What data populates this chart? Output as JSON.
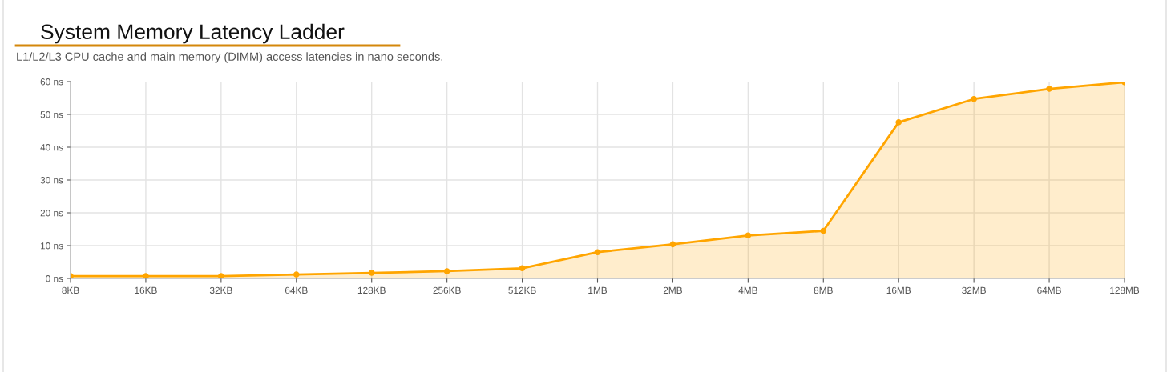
{
  "chart_data": {
    "type": "area",
    "title": "System Memory Latency Ladder",
    "subtitle": "L1/L2/L3 CPU cache and main memory (DIMM) access latencies in nano seconds.",
    "categories": [
      "8KB",
      "16KB",
      "32KB",
      "64KB",
      "128KB",
      "256KB",
      "512KB",
      "1MB",
      "2MB",
      "4MB",
      "8MB",
      "16MB",
      "32MB",
      "64MB",
      "128MB"
    ],
    "values": [
      0.7,
      0.7,
      0.7,
      1.2,
      1.7,
      2.2,
      3.1,
      8.0,
      10.4,
      13.1,
      14.5,
      47.6,
      54.7,
      57.8,
      59.8
    ],
    "color": "#ffa500",
    "marker": "circle",
    "grid": true,
    "ylim": [
      0,
      60
    ],
    "yticks": [
      {
        "value": 0,
        "label": "0 ns"
      },
      {
        "value": 10,
        "label": "10 ns"
      },
      {
        "value": 20,
        "label": "20 ns"
      },
      {
        "value": 30,
        "label": "30 ns"
      },
      {
        "value": 40,
        "label": "40 ns"
      },
      {
        "value": 50,
        "label": "50 ns"
      },
      {
        "value": 60,
        "label": "60 ns"
      }
    ]
  }
}
